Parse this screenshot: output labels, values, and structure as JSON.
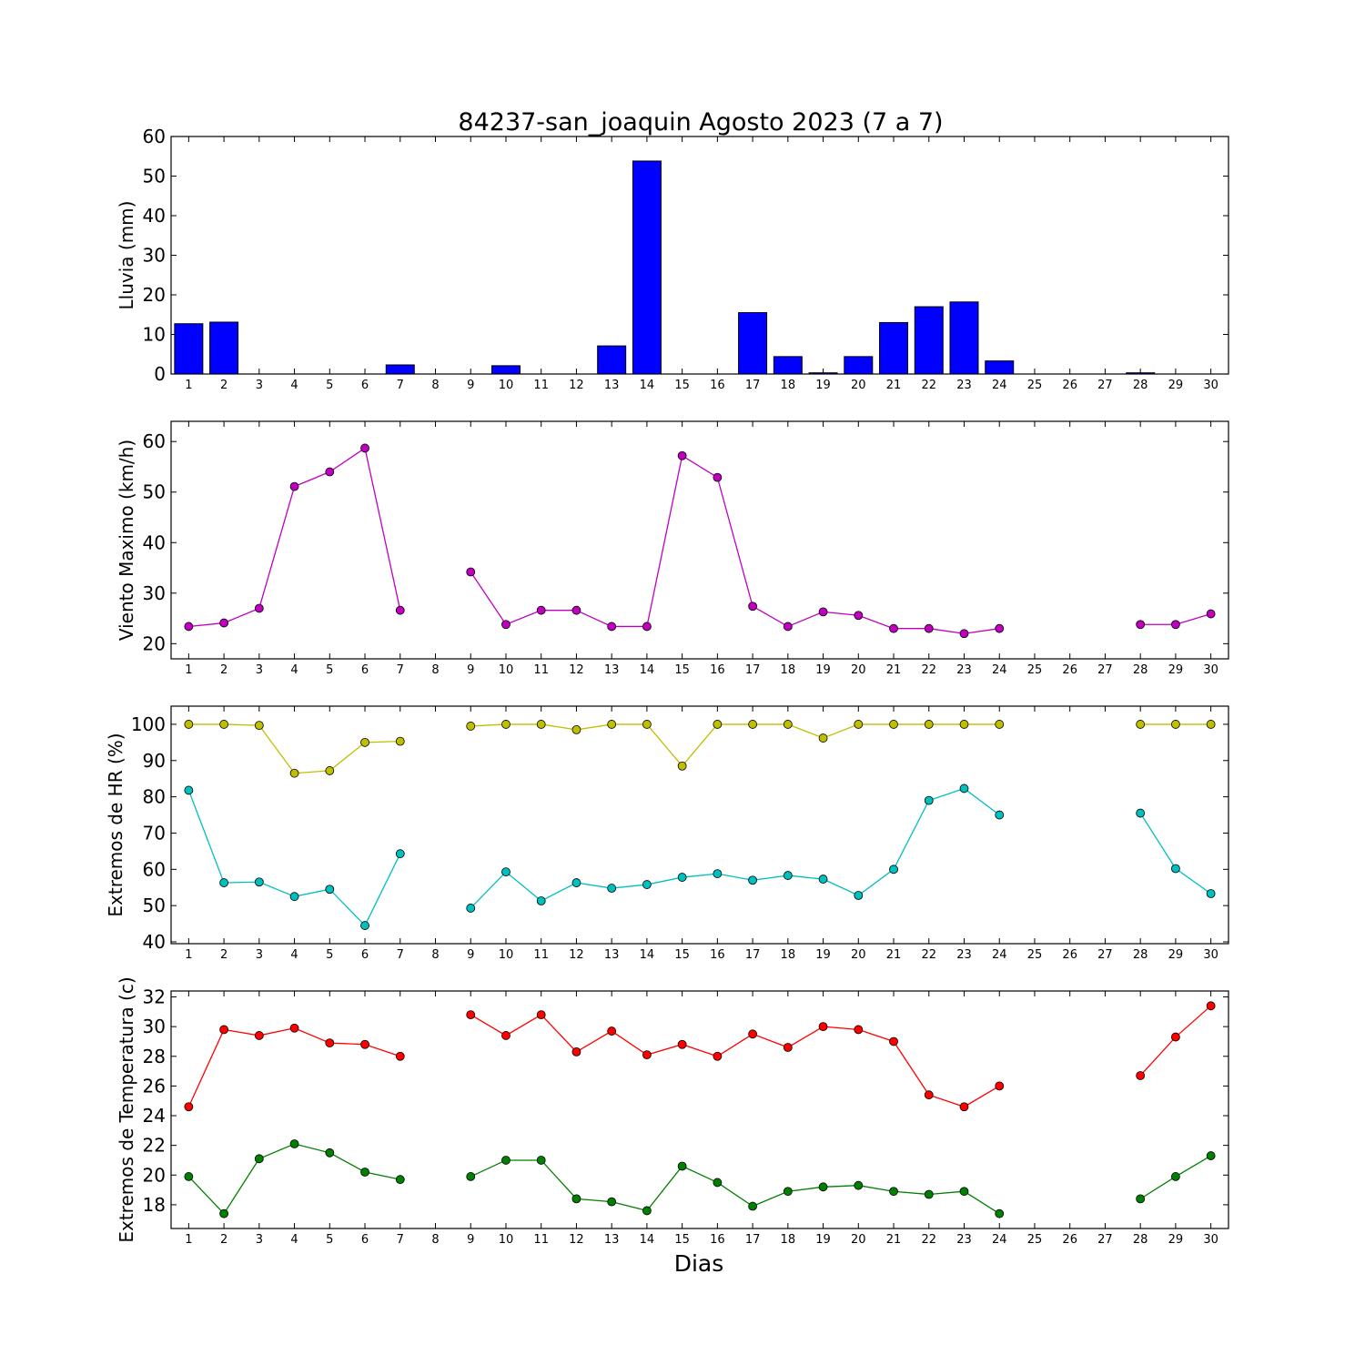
{
  "figure": {
    "title": "84237-san_joaquin Agosto 2023  (7 a 7)",
    "xlabel": "Dias"
  },
  "chart_data": [
    {
      "type": "bar",
      "ylabel": "Lluvia (mm)",
      "ylim": [
        0,
        60
      ],
      "yticks": [
        0,
        10,
        20,
        30,
        40,
        50,
        60
      ],
      "categories": [
        "1",
        "2",
        "3",
        "4",
        "5",
        "6",
        "7",
        "8",
        "9",
        "10",
        "11",
        "12",
        "13",
        "14",
        "15",
        "16",
        "17",
        "18",
        "19",
        "20",
        "21",
        "22",
        "23",
        "24",
        "25",
        "26",
        "27",
        "28",
        "29",
        "30"
      ],
      "values": [
        12.7,
        13.1,
        0,
        0,
        0,
        0,
        2.3,
        0,
        0,
        2.1,
        0,
        0,
        7.1,
        53.8,
        0,
        0,
        15.5,
        4.4,
        0.3,
        4.4,
        13.0,
        17.0,
        18.2,
        3.3,
        0,
        0,
        0,
        0.3,
        0,
        0
      ],
      "colors": {
        "bar": "#0000ff"
      }
    },
    {
      "type": "line",
      "ylabel": "Viento Maximo (km/h)",
      "ylim": [
        17,
        64
      ],
      "yticks": [
        20,
        30,
        40,
        50,
        60
      ],
      "x": [
        1,
        2,
        3,
        4,
        5,
        6,
        7,
        8,
        9,
        10,
        11,
        12,
        13,
        14,
        15,
        16,
        17,
        18,
        19,
        20,
        21,
        22,
        23,
        24,
        25,
        26,
        27,
        28,
        29,
        30
      ],
      "series": [
        {
          "color": "#bf00bf",
          "values": [
            23.4,
            24.1,
            27.0,
            51.1,
            54.0,
            58.7,
            26.6,
            null,
            34.2,
            23.8,
            26.6,
            26.6,
            23.4,
            23.4,
            57.2,
            52.9,
            27.4,
            23.4,
            26.3,
            25.6,
            23.0,
            23.0,
            22.0,
            23.0,
            null,
            null,
            null,
            23.8,
            23.8,
            25.9
          ]
        }
      ]
    },
    {
      "type": "line",
      "ylabel": "Extremos de HR (%)",
      "ylim": [
        39.5,
        105
      ],
      "yticks": [
        40,
        50,
        60,
        70,
        80,
        90,
        100
      ],
      "x": [
        1,
        2,
        3,
        4,
        5,
        6,
        7,
        8,
        9,
        10,
        11,
        12,
        13,
        14,
        15,
        16,
        17,
        18,
        19,
        20,
        21,
        22,
        23,
        24,
        25,
        26,
        27,
        28,
        29,
        30
      ],
      "series": [
        {
          "color": "#bfbf00",
          "values": [
            100,
            100,
            99.7,
            86.5,
            87.2,
            95.0,
            95.3,
            null,
            99.5,
            100,
            100,
            98.5,
            100,
            100,
            88.5,
            100,
            100,
            100,
            96.2,
            100,
            100,
            100,
            100,
            100,
            null,
            null,
            null,
            100,
            100,
            100
          ]
        },
        {
          "color": "#00bfbf",
          "values": [
            81.8,
            56.3,
            56.5,
            52.5,
            54.5,
            44.5,
            64.3,
            null,
            49.3,
            59.3,
            51.3,
            56.3,
            54.8,
            55.8,
            57.8,
            58.8,
            57.0,
            58.3,
            57.3,
            52.8,
            60.0,
            79.0,
            82.3,
            75.0,
            null,
            null,
            null,
            75.5,
            60.2,
            53.3
          ]
        }
      ]
    },
    {
      "type": "line",
      "ylabel": "Extremos de Temperatura (c)",
      "ylim": [
        16.4,
        32.4
      ],
      "yticks": [
        18,
        20,
        22,
        24,
        26,
        28,
        30,
        32
      ],
      "x": [
        1,
        2,
        3,
        4,
        5,
        6,
        7,
        8,
        9,
        10,
        11,
        12,
        13,
        14,
        15,
        16,
        17,
        18,
        19,
        20,
        21,
        22,
        23,
        24,
        25,
        26,
        27,
        28,
        29,
        30
      ],
      "series": [
        {
          "color": "#ff0000",
          "values": [
            24.6,
            29.8,
            29.4,
            29.9,
            28.9,
            28.8,
            28.0,
            null,
            30.8,
            29.4,
            30.8,
            28.3,
            29.7,
            28.1,
            28.8,
            28.0,
            29.5,
            28.6,
            30.0,
            29.8,
            29.0,
            25.4,
            24.6,
            26.0,
            null,
            null,
            null,
            26.7,
            29.3,
            31.4
          ]
        },
        {
          "color": "#008000",
          "values": [
            19.9,
            17.4,
            21.1,
            22.1,
            21.5,
            20.2,
            19.7,
            null,
            19.9,
            21.0,
            21.0,
            18.4,
            18.2,
            17.6,
            20.6,
            19.5,
            17.9,
            18.9,
            19.2,
            19.3,
            18.9,
            18.7,
            18.9,
            17.4,
            null,
            null,
            null,
            18.4,
            19.9,
            21.3
          ]
        }
      ]
    }
  ]
}
